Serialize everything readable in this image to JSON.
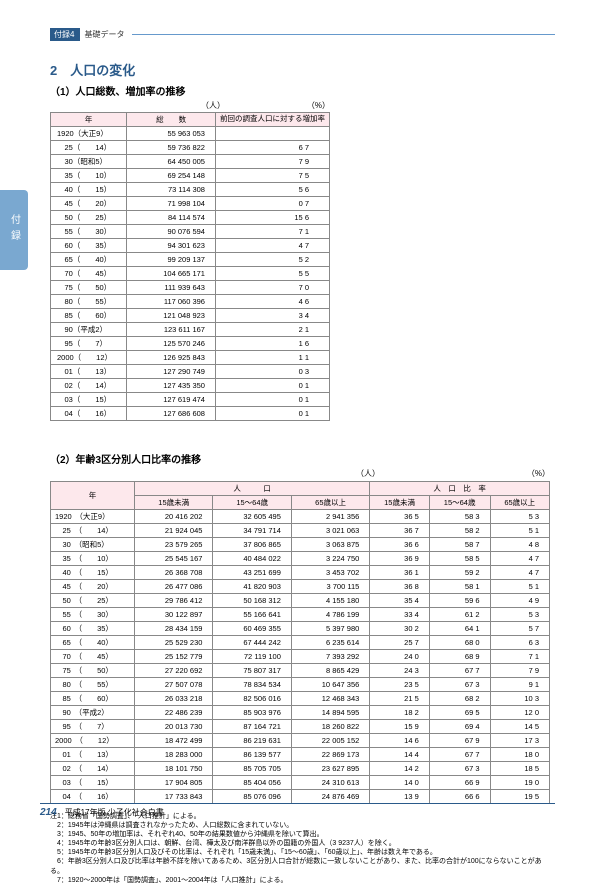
{
  "header": {
    "tag": "付録4",
    "label": "基礎データ"
  },
  "sideTab": "付録",
  "section": {
    "title": "2　人口の変化",
    "sub1": "（1）人口総数、増加率の推移",
    "sub2": "（2）年齢3区分別人口比率の推移"
  },
  "units": {
    "people": "（人）",
    "percent": "（%）"
  },
  "table1": {
    "headers": [
      "年",
      "総　　数",
      "前回の調査人口に対する増加率"
    ],
    "rows": [
      [
        "1920（大正9）",
        "55 963 053",
        ""
      ],
      [
        "　25（　　14）",
        "59 736 822",
        "6 7"
      ],
      [
        "　30（昭和5）",
        "64 450 005",
        "7 9"
      ],
      [
        "　35（　　10）",
        "69 254 148",
        "7 5"
      ],
      [
        "　40（　　15）",
        "73 114 308",
        "5 6"
      ],
      [
        "　45（　　20）",
        "71 998 104",
        "0 7"
      ],
      [
        "　50（　　25）",
        "84 114 574",
        "15 6"
      ],
      [
        "　55（　　30）",
        "90 076 594",
        "7 1"
      ],
      [
        "　60（　　35）",
        "94 301 623",
        "4 7"
      ],
      [
        "　65（　　40）",
        "99 209 137",
        "5 2"
      ],
      [
        "　70（　　45）",
        "104 665 171",
        "5 5"
      ],
      [
        "　75（　　50）",
        "111 939 643",
        "7 0"
      ],
      [
        "　80（　　55）",
        "117 060 396",
        "4 6"
      ],
      [
        "　85（　　60）",
        "121 048 923",
        "3 4"
      ],
      [
        "　90（平成2）",
        "123 611 167",
        "2 1"
      ],
      [
        "　95（　　7）",
        "125 570 246",
        "1 6"
      ],
      [
        "2000（　　12）",
        "126 925 843",
        "1 1"
      ],
      [
        "　01（　　13）",
        "127 290 749",
        "0 3"
      ],
      [
        "　02（　　14）",
        "127 435 350",
        "0 1"
      ],
      [
        "　03（　　15）",
        "127 619 474",
        "0 1"
      ],
      [
        "　04（　　16）",
        "127 686 608",
        "0 1"
      ]
    ]
  },
  "table2": {
    "topHeaders": [
      "年",
      "人　　　口",
      "人　口　比　率"
    ],
    "subHeaders": [
      "15歳未満",
      "15～64歳",
      "65歳以上",
      "15歳未満",
      "15～64歳",
      "65歳以上"
    ],
    "rows": [
      [
        "1920　（大正9）",
        "20 416 202",
        "32 605 495",
        "2 941 356",
        "36 5",
        "58 3",
        "5 3"
      ],
      [
        "　25　（　　14）",
        "21 924 045",
        "34 791 714",
        "3 021 063",
        "36 7",
        "58 2",
        "5 1"
      ],
      [
        "　30　（昭和5）",
        "23 579 265",
        "37 806 865",
        "3 063 875",
        "36 6",
        "58 7",
        "4 8"
      ],
      [
        "　35　（　　10）",
        "25 545 167",
        "40 484 022",
        "3 224 750",
        "36 9",
        "58 5",
        "4 7"
      ],
      [
        "　40　（　　15）",
        "26 368 708",
        "43 251 699",
        "3 453 702",
        "36 1",
        "59 2",
        "4 7"
      ],
      [
        "　45　（　　20）",
        "26 477 086",
        "41 820 903",
        "3 700 115",
        "36 8",
        "58 1",
        "5 1"
      ],
      [
        "　50　（　　25）",
        "29 786 412",
        "50 168 312",
        "4 155 180",
        "35 4",
        "59 6",
        "4 9"
      ],
      [
        "　55　（　　30）",
        "30 122 897",
        "55 166 641",
        "4 786 199",
        "33 4",
        "61 2",
        "5 3"
      ],
      [
        "　60　（　　35）",
        "28 434 159",
        "60 469 355",
        "5 397 980",
        "30 2",
        "64 1",
        "5 7"
      ],
      [
        "　65　（　　40）",
        "25 529 230",
        "67 444 242",
        "6 235 614",
        "25 7",
        "68 0",
        "6 3"
      ],
      [
        "　70　（　　45）",
        "25 152 779",
        "72 119 100",
        "7 393 292",
        "24 0",
        "68 9",
        "7 1"
      ],
      [
        "　75　（　　50）",
        "27 220 692",
        "75 807 317",
        "8 865 429",
        "24 3",
        "67 7",
        "7 9"
      ],
      [
        "　80　（　　55）",
        "27 507 078",
        "78 834 534",
        "10 647 356",
        "23 5",
        "67 3",
        "9 1"
      ],
      [
        "　85　（　　60）",
        "26 033 218",
        "82 506 016",
        "12 468 343",
        "21 5",
        "68 2",
        "10 3"
      ],
      [
        "　90　（平成2）",
        "22 486 239",
        "85 903 976",
        "14 894 595",
        "18 2",
        "69 5",
        "12 0"
      ],
      [
        "　95　（　　7）",
        "20 013 730",
        "87 164 721",
        "18 260 822",
        "15 9",
        "69 4",
        "14 5"
      ],
      [
        "2000　（　　12）",
        "18 472 499",
        "86 219 631",
        "22 005 152",
        "14 6",
        "67 9",
        "17 3"
      ],
      [
        "　01　（　　13）",
        "18 283 000",
        "86 139 577",
        "22 869 173",
        "14 4",
        "67 7",
        "18 0"
      ],
      [
        "　02　（　　14）",
        "18 101 750",
        "85 705 705",
        "23 627 895",
        "14 2",
        "67 3",
        "18 5"
      ],
      [
        "　03　（　　15）",
        "17 904 805",
        "85 404 056",
        "24 310 613",
        "14 0",
        "66 9",
        "19 0"
      ],
      [
        "　04　（　　16）",
        "17 733 843",
        "85 076 096",
        "24 876 469",
        "13 9",
        "66 6",
        "19 5"
      ]
    ]
  },
  "notes": [
    "注1：総務省「国勢調査」、「人口推計」による。",
    "　2：1945年は沖縄県は調査されなかったため、人口総数に含まれていない。",
    "　3：1945、50年の増加率は、それぞれ40、50年の結果数値から沖縄県を除いて算出。",
    "　4：1945年の年齢3区分別人口は、朝鮮、台湾、樺太及び南洋群島以外の国籍の外国人（3 9237人）を除く。",
    "　5：1945年の年齢3区分別人口及びその比率は、それぞれ「15歳未満」、「15～60歳」、「60歳以上」、年齢は数え年である。",
    "　6：年齢3区分別人口及び比率は年齢不詳を除いてあるため、3区分別人口合計が総数に一致しないことがあり、また、比率の合計が100にならないことがある。",
    "　7：1920～2000年は「国勢調査」、2001～2004年は「人口推計」による。"
  ],
  "footer": {
    "page": "214",
    "text": "平成17年版 少子化社会白書"
  }
}
